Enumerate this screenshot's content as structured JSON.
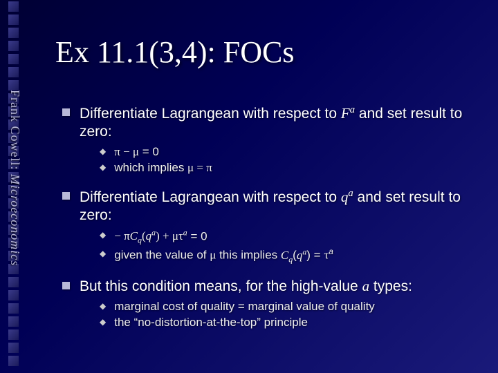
{
  "sidebar": {
    "author": "Frank Cowell: ",
    "work": "Microeconomics"
  },
  "title": "Ex 11.1(3,4): FOCs",
  "items": [
    {
      "text_html": "Differentiate Lagrangean with respect to <span class='it'>F<sup>a</sup></span> and set result to zero:",
      "sub": [
        {
          "text_html": "<span class='sym'>π − μ</span> = 0"
        },
        {
          "text_html": "which implies <span class='sym'>μ = π</span>"
        }
      ]
    },
    {
      "text_html": "Differentiate Lagrangean with respect to <span class='it'>q<sup>a</sup></span> and set result to zero:",
      "sub": [
        {
          "text_html": "<span class='sym'>− π<span class='it'>C<sub>q</sub></span>(<span class='it'>q<sup>a</sup></span>) + μτ<sup>a</sup></span> = 0"
        },
        {
          "text_html": "given the value of <span class='sym'>μ</span> this implies <span class='it'>C<sub>q</sub></span>(<span class='it'>q<sup>a</sup></span>)  = <span class='sym'>τ</span><sup>a</sup>"
        }
      ]
    },
    {
      "text_html": "But this condition means, for the high-value <span class='it'>a</span> types:",
      "sub": [
        {
          "text_html": "marginal cost of quality = marginal value of quality"
        },
        {
          "text_html": "the “no-distortion-at-the-top” principle"
        }
      ]
    }
  ],
  "style": {
    "bg_gradient": [
      "#000033",
      "#000055",
      "#1a1a7a"
    ],
    "title_color": "#ffffff",
    "title_fontsize": 44,
    "body_color": "#ffffff",
    "body_fontsize": 21,
    "sub_fontsize": 17,
    "sidebar_color": "#b8b8d8",
    "square_bullet_color": "#b8b8d8",
    "diamond_bullet_color": "#cccccc"
  },
  "strip_squares": 28
}
